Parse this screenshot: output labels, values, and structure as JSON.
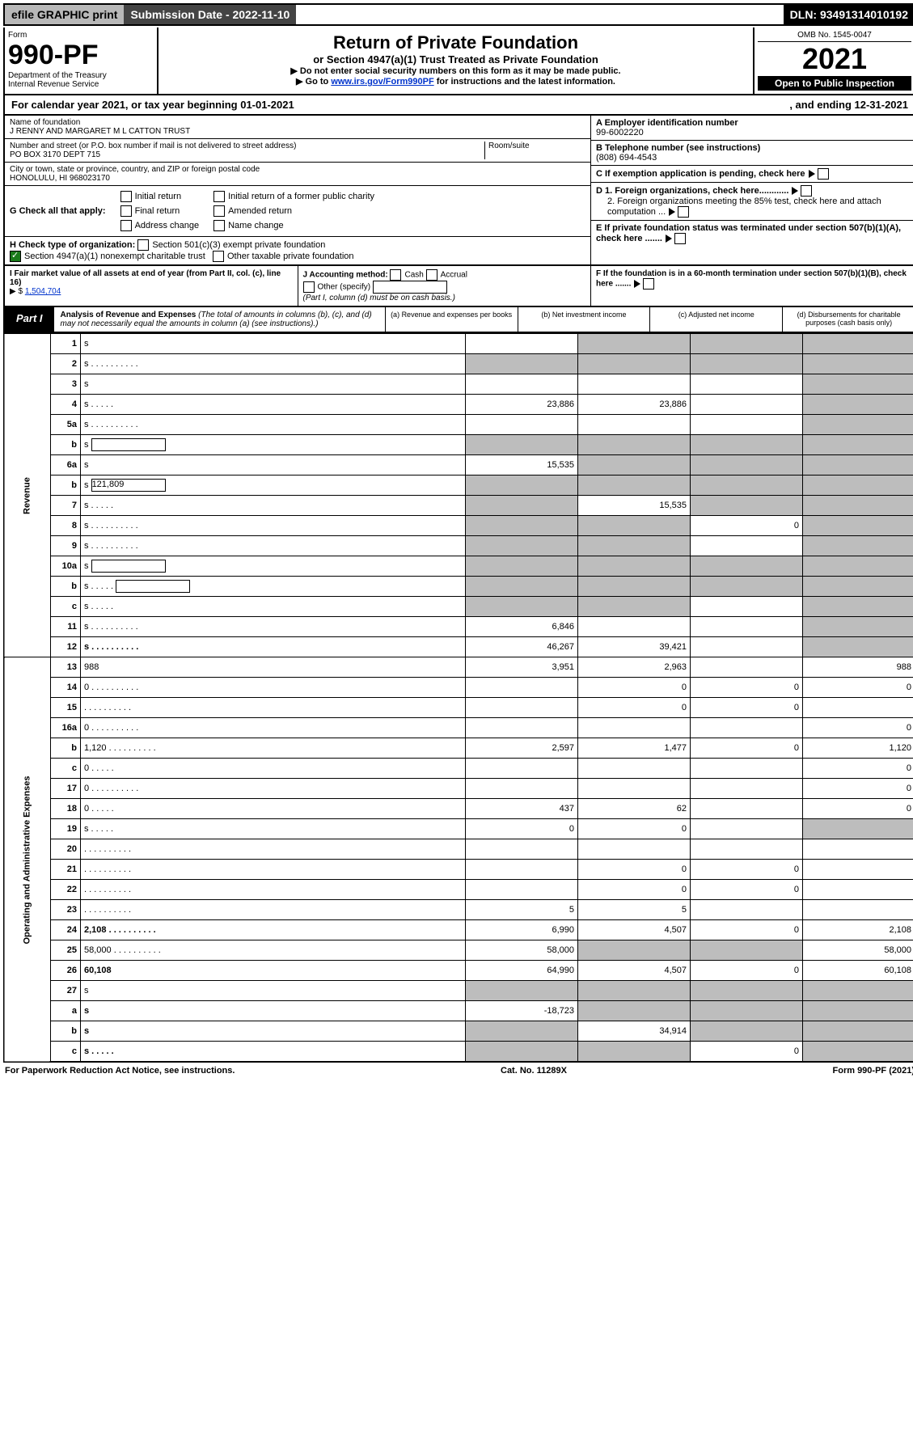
{
  "top": {
    "efile": "efile GRAPHIC print",
    "sub_date": "Submission Date - 2022-11-10",
    "dln": "DLN: 93491314010192"
  },
  "header": {
    "form_label": "Form",
    "form_num": "990-PF",
    "dept": "Department of the Treasury",
    "irs": "Internal Revenue Service",
    "title": "Return of Private Foundation",
    "subtitle": "or Section 4947(a)(1) Trust Treated as Private Foundation",
    "note1": "▶ Do not enter social security numbers on this form as it may be made public.",
    "note2_pre": "▶ Go to ",
    "note2_link": "www.irs.gov/Form990PF",
    "note2_post": " for instructions and the latest information.",
    "omb": "OMB No. 1545-0047",
    "year": "2021",
    "otp": "Open to Public Inspection"
  },
  "cal": {
    "text": "For calendar year 2021, or tax year beginning 01-01-2021",
    "end": ", and ending 12-31-2021"
  },
  "info_left": {
    "name_lbl": "Name of foundation",
    "name_val": "J RENNY AND MARGARET M L CATTON TRUST",
    "addr_lbl": "Number and street (or P.O. box number if mail is not delivered to street address)",
    "addr_val": "PO BOX 3170 DEPT 715",
    "room_lbl": "Room/suite",
    "city_lbl": "City or town, state or province, country, and ZIP or foreign postal code",
    "city_val": "HONOLULU, HI  968023170"
  },
  "info_right": {
    "a_lbl": "A Employer identification number",
    "a_val": "99-6002220",
    "b_lbl": "B Telephone number (see instructions)",
    "b_val": "(808) 694-4543",
    "c_lbl": "C If exemption application is pending, check here",
    "d1_lbl": "D 1. Foreign organizations, check here............",
    "d2_lbl": "2. Foreign organizations meeting the 85% test, check here and attach computation ...",
    "e_lbl": "E  If private foundation status was terminated under section 507(b)(1)(A), check here .......",
    "f_lbl": "F  If the foundation is in a 60-month termination under section 507(b)(1)(B), check here ......."
  },
  "g": {
    "lbl": "G Check all that apply:",
    "opts": [
      "Initial return",
      "Final return",
      "Address change",
      "Initial return of a former public charity",
      "Amended return",
      "Name change"
    ]
  },
  "h": {
    "lbl": "H Check type of organization:",
    "o1": "Section 501(c)(3) exempt private foundation",
    "o2": "Section 4947(a)(1) nonexempt charitable trust",
    "o3": "Other taxable private foundation"
  },
  "i": {
    "lbl": "I Fair market value of all assets at end of year (from Part II, col. (c), line 16)",
    "val_lbl": "▶ $",
    "val": "1,504,704"
  },
  "j": {
    "lbl": "J Accounting method:",
    "cash": "Cash",
    "accrual": "Accrual",
    "other": "Other (specify)",
    "note": "(Part I, column (d) must be on cash basis.)"
  },
  "part1": {
    "label": "Part I",
    "title": "Analysis of Revenue and Expenses",
    "note": "(The total of amounts in columns (b), (c), and (d) may not necessarily equal the amounts in column (a) (see instructions).)",
    "col_a": "(a)   Revenue and expenses per books",
    "col_b": "(b)   Net investment income",
    "col_c": "(c)   Adjusted net income",
    "col_d": "(d)   Disbursements for charitable purposes (cash basis only)"
  },
  "side": {
    "rev": "Revenue",
    "exp": "Operating and Administrative Expenses"
  },
  "rows": [
    {
      "n": "1",
      "d": "s",
      "a": "",
      "b": "s",
      "c": "s"
    },
    {
      "n": "2",
      "d": "s",
      "a": "s",
      "b": "s",
      "c": "s",
      "dots": true
    },
    {
      "n": "3",
      "d": "s",
      "a": "",
      "b": "",
      "c": ""
    },
    {
      "n": "4",
      "d": "s",
      "a": "23,886",
      "b": "23,886",
      "c": "",
      "dots": "s"
    },
    {
      "n": "5a",
      "d": "s",
      "a": "",
      "b": "",
      "c": "",
      "dots": true
    },
    {
      "n": "b",
      "d": "s",
      "a": "s",
      "b": "s",
      "c": "s",
      "box": true
    },
    {
      "n": "6a",
      "d": "s",
      "a": "15,535",
      "b": "s",
      "c": "s"
    },
    {
      "n": "b",
      "d": "s",
      "a": "s",
      "b": "s",
      "c": "s",
      "box": true,
      "boxv": "121,809"
    },
    {
      "n": "7",
      "d": "s",
      "a": "s",
      "b": "15,535",
      "c": "s",
      "dots": "s"
    },
    {
      "n": "8",
      "d": "s",
      "a": "s",
      "b": "s",
      "c": "0",
      "dots": true
    },
    {
      "n": "9",
      "d": "s",
      "a": "s",
      "b": "s",
      "c": "",
      "dots": true
    },
    {
      "n": "10a",
      "d": "s",
      "a": "s",
      "b": "s",
      "c": "s",
      "box": true
    },
    {
      "n": "b",
      "d": "s",
      "a": "s",
      "b": "s",
      "c": "s",
      "box": true,
      "dots": "s"
    },
    {
      "n": "c",
      "d": "s",
      "a": "s",
      "b": "s",
      "c": "",
      "dots": "s"
    },
    {
      "n": "11",
      "d": "s",
      "a": "6,846",
      "b": "",
      "c": "",
      "dots": true
    },
    {
      "n": "12",
      "d": "s",
      "a": "46,267",
      "b": "39,421",
      "c": "",
      "bold": true,
      "dots": true
    }
  ],
  "exp_rows": [
    {
      "n": "13",
      "d": "988",
      "a": "3,951",
      "b": "2,963",
      "c": ""
    },
    {
      "n": "14",
      "d": "0",
      "a": "",
      "b": "0",
      "c": "0",
      "dots": true
    },
    {
      "n": "15",
      "d": "",
      "a": "",
      "b": "0",
      "c": "0",
      "dots": true
    },
    {
      "n": "16a",
      "d": "0",
      "a": "",
      "b": "",
      "c": "",
      "dots": true
    },
    {
      "n": "b",
      "d": "1,120",
      "a": "2,597",
      "b": "1,477",
      "c": "0",
      "dots": true
    },
    {
      "n": "c",
      "d": "0",
      "a": "",
      "b": "",
      "c": "",
      "dots": "s"
    },
    {
      "n": "17",
      "d": "0",
      "a": "",
      "b": "",
      "c": "",
      "dots": true
    },
    {
      "n": "18",
      "d": "0",
      "a": "437",
      "b": "62",
      "c": "",
      "dots": "s"
    },
    {
      "n": "19",
      "d": "s",
      "a": "0",
      "b": "0",
      "c": "",
      "dots": "s"
    },
    {
      "n": "20",
      "d": "",
      "a": "",
      "b": "",
      "c": "",
      "dots": true
    },
    {
      "n": "21",
      "d": "",
      "a": "",
      "b": "0",
      "c": "0",
      "dots": true
    },
    {
      "n": "22",
      "d": "",
      "a": "",
      "b": "0",
      "c": "0",
      "dots": true
    },
    {
      "n": "23",
      "d": "",
      "a": "5",
      "b": "5",
      "c": "",
      "dots": true
    },
    {
      "n": "24",
      "d": "2,108",
      "a": "6,990",
      "b": "4,507",
      "c": "0",
      "bold": true,
      "dots": true
    },
    {
      "n": "25",
      "d": "58,000",
      "a": "58,000",
      "b": "s",
      "c": "s",
      "dots": true
    },
    {
      "n": "26",
      "d": "60,108",
      "a": "64,990",
      "b": "4,507",
      "c": "0",
      "bold": true
    },
    {
      "n": "27",
      "d": "s",
      "a": "s",
      "b": "s",
      "c": "s"
    },
    {
      "n": "a",
      "d": "s",
      "a": "-18,723",
      "b": "s",
      "c": "s",
      "bold": true
    },
    {
      "n": "b",
      "d": "s",
      "a": "s",
      "b": "34,914",
      "c": "s",
      "bold": true
    },
    {
      "n": "c",
      "d": "s",
      "a": "s",
      "b": "s",
      "c": "0",
      "bold": true,
      "dots": "s"
    }
  ],
  "footer": {
    "left": "For Paperwork Reduction Act Notice, see instructions.",
    "mid": "Cat. No. 11289X",
    "right": "Form 990-PF (2021)"
  }
}
